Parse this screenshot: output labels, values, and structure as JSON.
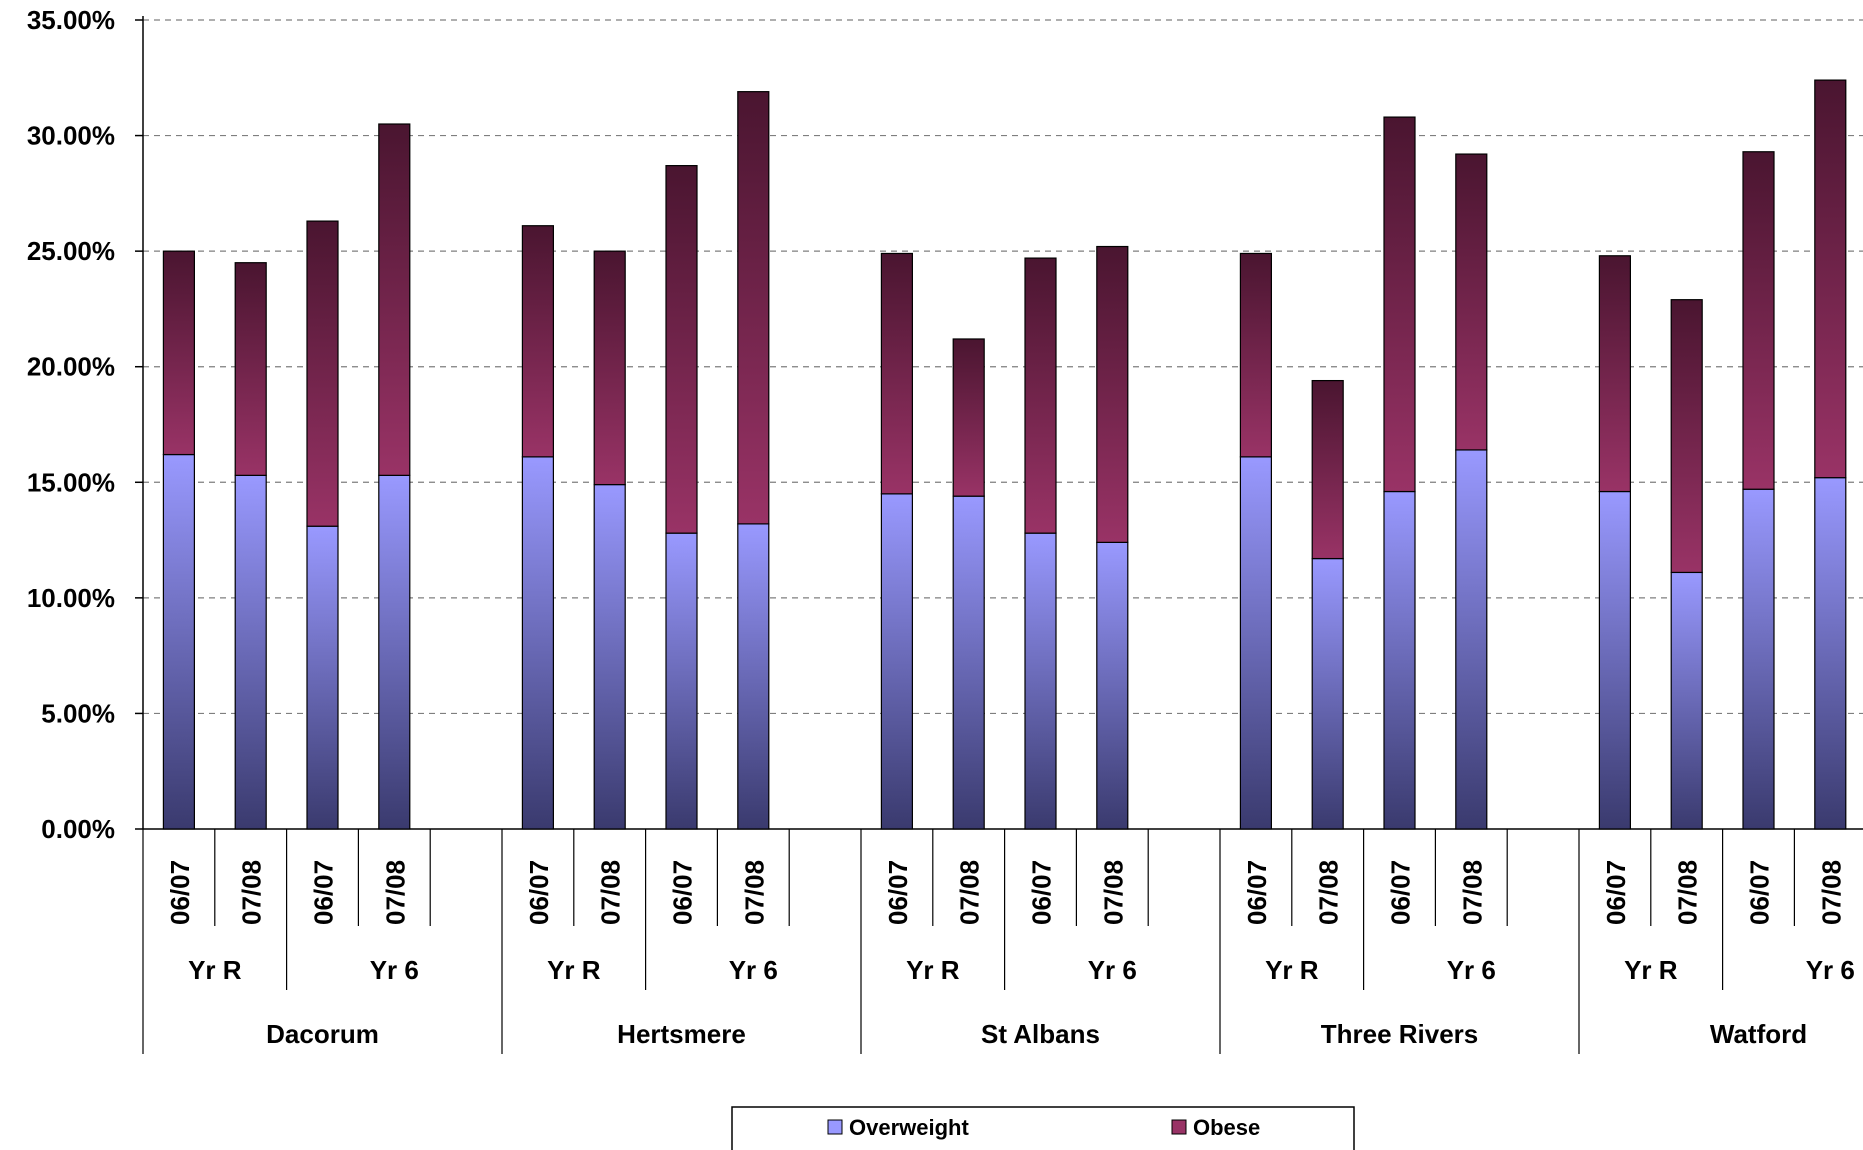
{
  "chart_data": {
    "type": "bar",
    "stacked": true,
    "title": "",
    "xlabel": "",
    "ylabel": "",
    "ylim": [
      0,
      35
    ],
    "yticks": [
      "0.00%",
      "5.00%",
      "10.00%",
      "15.00%",
      "20.00%",
      "25.00%",
      "30.00%",
      "35.00%"
    ],
    "ytick_values": [
      0,
      5,
      10,
      15,
      20,
      25,
      30,
      35
    ],
    "grid": true,
    "legend_position": "bottom",
    "districts": [
      "Dacorum",
      "Hertsmere",
      "St Albans",
      "Three Rivers",
      "Watford"
    ],
    "school_years": [
      "Yr R",
      "Yr 6"
    ],
    "periods": [
      "06/07",
      "07/08"
    ],
    "categories": [
      "Dacorum Yr R 06/07",
      "Dacorum Yr R 07/08",
      "Dacorum Yr 6 06/07",
      "Dacorum Yr 6 07/08",
      "Hertsmere Yr R 06/07",
      "Hertsmere Yr R 07/08",
      "Hertsmere Yr 6 06/07",
      "Hertsmere Yr 6 07/08",
      "St Albans Yr R 06/07",
      "St Albans Yr R 07/08",
      "St Albans Yr 6 06/07",
      "St Albans Yr 6 07/08",
      "Three Rivers Yr R 06/07",
      "Three Rivers Yr R 07/08",
      "Three Rivers Yr 6 06/07",
      "Three Rivers Yr 6 07/08",
      "Watford Yr R 06/07",
      "Watford Yr R 07/08",
      "Watford Yr 6 06/07",
      "Watford Yr 6 07/08"
    ],
    "series": [
      {
        "name": "Overweight",
        "color_top": "#9999ff",
        "color_bottom": "#3a3a6e",
        "values": [
          16.2,
          15.3,
          13.1,
          15.3,
          16.1,
          14.9,
          12.8,
          13.2,
          14.5,
          14.4,
          12.8,
          12.4,
          16.1,
          11.7,
          14.6,
          16.4,
          14.6,
          11.1,
          14.7,
          15.2
        ]
      },
      {
        "name": "Obese",
        "color_top": "#4a1530",
        "color_bottom": "#993366",
        "values": [
          8.8,
          9.2,
          13.2,
          15.2,
          10.0,
          10.1,
          15.9,
          18.7,
          10.4,
          6.8,
          11.9,
          12.8,
          8.8,
          7.7,
          16.2,
          12.8,
          10.2,
          11.8,
          14.6,
          17.2
        ]
      }
    ]
  }
}
